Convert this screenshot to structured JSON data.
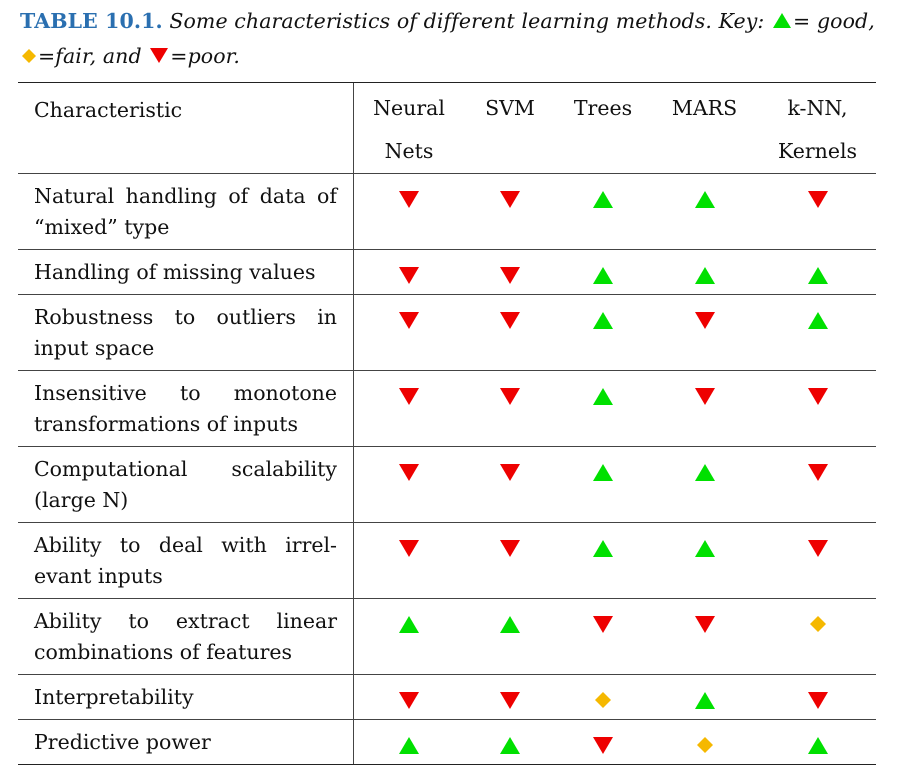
{
  "caption": {
    "label": "TABLE 10.1.",
    "text_before_key": " Some characteristics of different learning methods. Key: ",
    "good_text": "= good,",
    "fair_text": "=fair,  and ",
    "poor_text": "=poor."
  },
  "colors": {
    "good": "#00e000",
    "fair": "#f5b800",
    "poor": "#ee0000",
    "caption_label": "#2a6fb0"
  },
  "icons": {
    "good": "green-up-triangle",
    "fair": "orange-diamond",
    "poor": "red-down-triangle"
  },
  "table": {
    "corner_header": "Characteristic",
    "methods": [
      "Neural\nNets",
      "SVM",
      "Trees",
      "MARS",
      "k-NN,\nKernels"
    ],
    "rows": [
      {
        "label": "Natural handling of data of “mixed” type",
        "ratings": [
          "poor",
          "poor",
          "good",
          "good",
          "poor"
        ]
      },
      {
        "label": "Handling of missing values",
        "ratings": [
          "poor",
          "poor",
          "good",
          "good",
          "good"
        ]
      },
      {
        "label": "Robustness to outliers in input space",
        "ratings": [
          "poor",
          "poor",
          "good",
          "poor",
          "good"
        ]
      },
      {
        "label": "Insensitive to monotone transformations of inputs",
        "ratings": [
          "poor",
          "poor",
          "good",
          "poor",
          "poor"
        ]
      },
      {
        "label": "Computational scalability (large N)",
        "ratings": [
          "poor",
          "poor",
          "good",
          "good",
          "poor"
        ]
      },
      {
        "label": "Ability to deal with irrel-evant inputs",
        "ratings": [
          "poor",
          "poor",
          "good",
          "good",
          "poor"
        ]
      },
      {
        "label": "Ability to extract linear combinations of features",
        "ratings": [
          "good",
          "good",
          "poor",
          "poor",
          "fair"
        ]
      },
      {
        "label": "Interpretability",
        "ratings": [
          "poor",
          "poor",
          "fair",
          "good",
          "poor"
        ]
      },
      {
        "label": "Predictive power",
        "ratings": [
          "good",
          "good",
          "poor",
          "fair",
          "good"
        ]
      }
    ]
  }
}
